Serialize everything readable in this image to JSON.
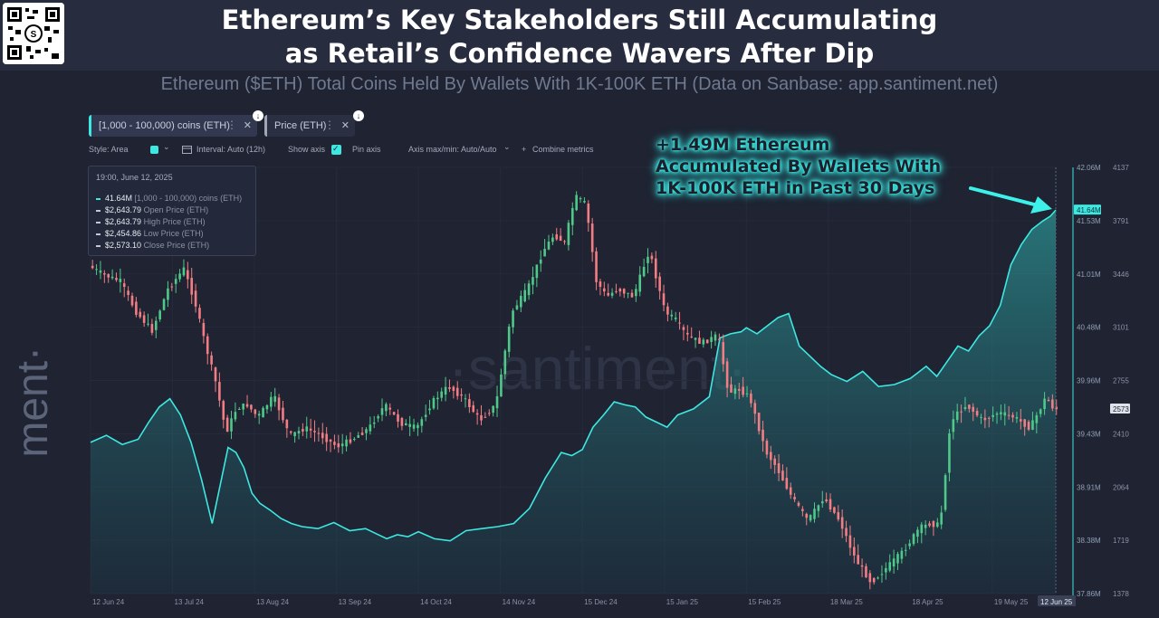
{
  "header": {
    "title_line1": "Ethereum’s Key Stakeholders Still Accumulating",
    "title_line2": "as Retail’s Confidence Wavers After Dip"
  },
  "subtitle": "Ethereum ($ETH) Total Coins Held By Wallets With 1K-100K ETH (Data on Sanbase: app.santiment.net)",
  "brand": {
    "logo_text": "·santiment·",
    "watermark": "·santiment·"
  },
  "metric_chips": [
    {
      "label": "[1,000 - 100,000) coins (ETH)",
      "color": "#3ee7e0"
    },
    {
      "label": "Price (ETH)",
      "color": "#a0a6b6"
    }
  ],
  "chip_controls": {
    "close_glyph": "✕",
    "more_glyph": "⋮",
    "download_glyph": "↓"
  },
  "toolbar": {
    "style": "Style: Area",
    "interval": "Interval: Auto (12h)",
    "show_axis": "Show axis",
    "pin_axis": "Pin axis",
    "axis_minmax": "Axis max/min: Auto/Auto",
    "combine": "Combine metrics",
    "interval_icon": "calendar-icon",
    "combine_icon": "plus-icon",
    "check_glyph": "✓",
    "chevron_glyph": "⌄"
  },
  "tooltip": {
    "date": "19:00, June 12, 2025",
    "rows": [
      {
        "value": "41.64M",
        "label": "[1,000 - 100,000) coins (ETH)",
        "color": "#3ee7e0"
      },
      {
        "value": "$2,643.79",
        "label": "Open Price (ETH)",
        "color": "#c3c8d2"
      },
      {
        "value": "$2,643.79",
        "label": "High Price (ETH)",
        "color": "#c3c8d2"
      },
      {
        "value": "$2,454.86",
        "label": "Low Price (ETH)",
        "color": "#c3c8d2"
      },
      {
        "value": "$2,573.10",
        "label": "Close Price (ETH)",
        "color": "#c3c8d2"
      }
    ]
  },
  "annotation": {
    "line1": "+1.49M Ethereum",
    "line2": "Accumulated By Wallets With",
    "line3": "1K-100K ETH in Past 30 Days"
  },
  "colors": {
    "holdings": "#3ee7e0",
    "up_candle": "#4fc98a",
    "down_candle": "#f27d82",
    "background": "#1f2332"
  },
  "chart_data": {
    "type": "area",
    "x_tick_labels": [
      "12 Jun 24",
      "13 Jul 24",
      "13 Aug 24",
      "13 Sep 24",
      "14 Oct 24",
      "14 Nov 24",
      "15 Dec 24",
      "15 Jan 25",
      "15 Feb 25",
      "18 Mar 25",
      "18 Apr 25",
      "19 May 25",
      "12 Jun 25"
    ],
    "x_days": [
      0,
      31,
      62,
      93,
      124,
      155,
      186,
      217,
      248,
      279,
      310,
      341,
      365
    ],
    "ylim_holdings": [
      37.86,
      42.06
    ],
    "yticks_holdings": [
      "42.06M",
      "41.53M",
      "41.01M",
      "40.48M",
      "39.96M",
      "39.43M",
      "38.91M",
      "38.38M",
      "37.86M"
    ],
    "ylim_price": [
      1378,
      4137
    ],
    "yticks_price": [
      "4137",
      "3791",
      "3446",
      "3101",
      "2755",
      "2410",
      "2064",
      "1719",
      "1378"
    ],
    "last_holdings_label": "41.64M",
    "last_price_label": "2573",
    "series": [
      {
        "name": "[1,000 - 100,000) coins (ETH)",
        "style": "area",
        "x": [
          0,
          6,
          12,
          18,
          22,
          26,
          30,
          34,
          38,
          42,
          46,
          52,
          55,
          58,
          61,
          64,
          68,
          72,
          76,
          80,
          86,
          92,
          98,
          104,
          108,
          112,
          116,
          120,
          124,
          130,
          136,
          142,
          148,
          154,
          160,
          166,
          172,
          178,
          182,
          186,
          190,
          194,
          198,
          202,
          206,
          210,
          214,
          218,
          222,
          228,
          234,
          238,
          242,
          246,
          248,
          252,
          256,
          260,
          264,
          268,
          272,
          276,
          280,
          286,
          292,
          298,
          304,
          310,
          316,
          320,
          324,
          328,
          332,
          336,
          340,
          344,
          348,
          352,
          356,
          360,
          363,
          365
        ],
        "y": [
          39.35,
          39.42,
          39.33,
          39.38,
          39.55,
          39.7,
          39.78,
          39.62,
          39.35,
          38.98,
          38.55,
          39.3,
          39.25,
          39.1,
          38.85,
          38.75,
          38.68,
          38.6,
          38.55,
          38.52,
          38.5,
          38.56,
          38.48,
          38.5,
          38.45,
          38.4,
          38.44,
          38.42,
          38.47,
          38.4,
          38.38,
          38.48,
          38.5,
          38.52,
          38.55,
          38.7,
          39.0,
          39.25,
          39.22,
          39.28,
          39.5,
          39.62,
          39.75,
          39.72,
          39.7,
          39.6,
          39.55,
          39.5,
          39.62,
          39.68,
          39.8,
          40.38,
          40.42,
          40.44,
          40.48,
          40.42,
          40.5,
          40.58,
          40.62,
          40.3,
          40.2,
          40.1,
          40.02,
          39.95,
          40.05,
          39.9,
          39.92,
          39.98,
          40.1,
          40.0,
          40.15,
          40.3,
          40.25,
          40.4,
          40.5,
          40.7,
          41.1,
          41.3,
          41.45,
          41.53,
          41.58,
          41.64
        ]
      },
      {
        "name": "Price (ETH)",
        "style": "candlestick",
        "x": [
          0,
          6,
          12,
          18,
          24,
          30,
          36,
          40,
          44,
          48,
          52,
          56,
          60,
          64,
          70,
          76,
          82,
          88,
          94,
          100,
          106,
          112,
          118,
          124,
          130,
          136,
          142,
          148,
          154,
          160,
          166,
          172,
          176,
          180,
          184,
          188,
          192,
          196,
          200,
          206,
          212,
          218,
          222,
          226,
          232,
          238,
          242,
          246,
          250,
          256,
          260,
          266,
          272,
          278,
          284,
          290,
          296,
          302,
          308,
          314,
          318,
          322,
          326,
          332,
          338,
          344,
          350,
          356,
          360,
          362,
          365
        ],
        "y": [
          3500,
          3440,
          3400,
          3200,
          3080,
          3350,
          3480,
          3280,
          3000,
          2750,
          2420,
          2580,
          2600,
          2520,
          2660,
          2400,
          2450,
          2400,
          2330,
          2380,
          2450,
          2600,
          2480,
          2450,
          2620,
          2720,
          2640,
          2500,
          2600,
          3200,
          3350,
          3600,
          3700,
          3650,
          3950,
          3900,
          3400,
          3300,
          3350,
          3300,
          3600,
          3200,
          3150,
          3050,
          3000,
          3050,
          2680,
          2700,
          2650,
          2300,
          2200,
          2000,
          1850,
          2000,
          1850,
          1600,
          1450,
          1550,
          1650,
          1800,
          1830,
          1820,
          2500,
          2600,
          2500,
          2550,
          2520,
          2450,
          2580,
          2650,
          2573
        ]
      }
    ]
  }
}
